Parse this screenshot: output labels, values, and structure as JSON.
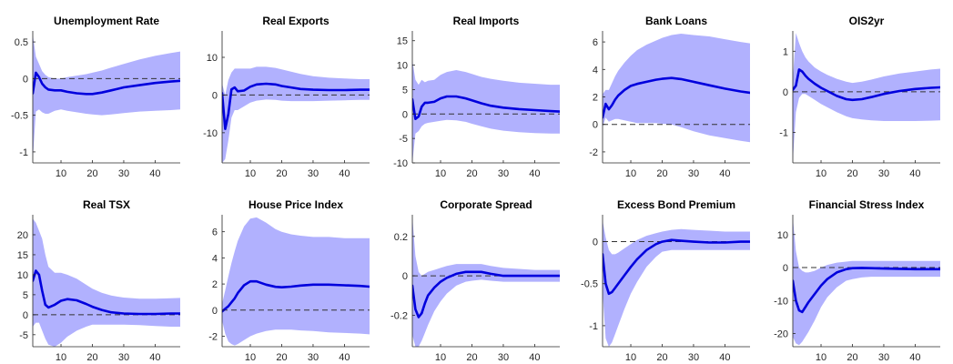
{
  "figure": {
    "colors": {
      "band": "#b1b1fe",
      "line": "#0000dd",
      "zero": "#333333"
    }
  },
  "chart_data": [
    {
      "type": "area",
      "title": "Unemployment Rate",
      "xlim": [
        1,
        48
      ],
      "ylim": [
        -1.15,
        0.65
      ],
      "xticks": [
        10,
        20,
        30,
        40
      ],
      "yticks": [
        -1,
        -0.5,
        0,
        0.5
      ],
      "ytick_labels": [
        "-1",
        "-0.5",
        "0",
        "0.5"
      ],
      "zero_line": 0,
      "x": [
        1,
        2,
        3,
        4,
        5,
        6,
        8,
        10,
        12,
        15,
        18,
        20,
        23,
        26,
        30,
        35,
        40,
        45,
        48
      ],
      "median": [
        -0.2,
        0.08,
        0.02,
        -0.07,
        -0.12,
        -0.15,
        -0.16,
        -0.16,
        -0.18,
        -0.2,
        -0.21,
        -0.21,
        -0.19,
        -0.16,
        -0.12,
        -0.09,
        -0.06,
        -0.04,
        -0.03
      ],
      "upper": [
        0.6,
        0.3,
        0.2,
        0.1,
        0.05,
        0.02,
        0.0,
        0.0,
        0.02,
        0.04,
        0.06,
        0.08,
        0.11,
        0.15,
        0.2,
        0.26,
        0.31,
        0.35,
        0.37
      ],
      "lower": [
        -1.1,
        -0.45,
        -0.42,
        -0.46,
        -0.48,
        -0.48,
        -0.44,
        -0.42,
        -0.44,
        -0.46,
        -0.48,
        -0.49,
        -0.5,
        -0.49,
        -0.47,
        -0.45,
        -0.44,
        -0.43,
        -0.42
      ]
    },
    {
      "type": "area",
      "title": "Real Exports",
      "xlim": [
        1,
        48
      ],
      "ylim": [
        -18,
        17
      ],
      "xticks": [
        10,
        20,
        30,
        40
      ],
      "yticks": [
        -10,
        0,
        10
      ],
      "ytick_labels": [
        "-10",
        "0",
        "10"
      ],
      "zero_line": 0,
      "x": [
        1,
        2,
        3,
        4,
        5,
        6,
        8,
        10,
        12,
        15,
        18,
        20,
        23,
        26,
        30,
        35,
        40,
        45,
        48
      ],
      "median": [
        0.5,
        -9,
        -5,
        1.5,
        2,
        1,
        1.2,
        2.2,
        2.8,
        3,
        2.8,
        2.4,
        2,
        1.6,
        1.4,
        1.3,
        1.3,
        1.4,
        1.4
      ],
      "upper": [
        3,
        0,
        4,
        6,
        7,
        7,
        7,
        7,
        7.5,
        7.5,
        7.2,
        6.8,
        6.2,
        5.6,
        5,
        4.6,
        4.4,
        4.2,
        4.2
      ],
      "lower": [
        -18,
        -17,
        -12,
        -6,
        -4,
        -4,
        -3,
        -2,
        -1.5,
        -1.2,
        -1.3,
        -1.5,
        -1.6,
        -1.6,
        -1.6,
        -1.5,
        -1.4,
        -1.3,
        -1.3
      ]
    },
    {
      "type": "area",
      "title": "Real Imports",
      "xlim": [
        1,
        48
      ],
      "ylim": [
        -10,
        17
      ],
      "xticks": [
        10,
        20,
        30,
        40
      ],
      "yticks": [
        -10,
        -5,
        0,
        5,
        10,
        15
      ],
      "ytick_labels": [
        "-10",
        "-5",
        "0",
        "5",
        "10",
        "15"
      ],
      "zero_line": 0,
      "x": [
        1,
        2,
        3,
        4,
        5,
        6,
        8,
        10,
        12,
        15,
        18,
        20,
        23,
        26,
        30,
        35,
        40,
        45,
        48
      ],
      "median": [
        3,
        -1,
        -0.5,
        1.5,
        2.3,
        2.3,
        2.5,
        3.2,
        3.6,
        3.6,
        3.2,
        2.8,
        2.2,
        1.7,
        1.3,
        1,
        0.8,
        0.6,
        0.5
      ],
      "upper": [
        11,
        7,
        6,
        7,
        6.5,
        6.8,
        7,
        8,
        8.6,
        9,
        8.6,
        8.2,
        7.6,
        7.2,
        6.8,
        6.4,
        6.2,
        6,
        6
      ],
      "lower": [
        -10,
        -4,
        -3.5,
        -2.5,
        -2,
        -1.8,
        -1.6,
        -1.4,
        -1.2,
        -1.3,
        -1.6,
        -2,
        -2.5,
        -3,
        -3.4,
        -3.7,
        -3.9,
        -4,
        -4
      ]
    },
    {
      "type": "area",
      "title": "Bank Loans",
      "xlim": [
        1,
        48
      ],
      "ylim": [
        -2.8,
        6.8
      ],
      "xticks": [
        10,
        20,
        30,
        40
      ],
      "yticks": [
        -2,
        0,
        2,
        4,
        6
      ],
      "ytick_labels": [
        "-2",
        "0",
        "2",
        "4",
        "6"
      ],
      "zero_line": 0,
      "x": [
        1,
        2,
        3,
        4,
        5,
        6,
        8,
        10,
        12,
        15,
        18,
        20,
        23,
        26,
        30,
        35,
        40,
        45,
        48
      ],
      "median": [
        0.5,
        1.5,
        1.1,
        1.4,
        1.8,
        2.1,
        2.5,
        2.8,
        2.95,
        3.1,
        3.25,
        3.32,
        3.38,
        3.3,
        3.1,
        2.85,
        2.6,
        2.4,
        2.3
      ],
      "upper": [
        2.2,
        2.5,
        2.5,
        3,
        3.5,
        3.9,
        4.5,
        5,
        5.4,
        5.8,
        6.1,
        6.3,
        6.5,
        6.6,
        6.5,
        6.4,
        6.2,
        6.0,
        5.9
      ],
      "lower": [
        -0.2,
        0.5,
        0.2,
        0.3,
        0.4,
        0.4,
        0.3,
        0.2,
        0.1,
        0.1,
        0.1,
        0.05,
        0,
        -0.2,
        -0.5,
        -0.8,
        -1.0,
        -1.2,
        -1.3
      ]
    },
    {
      "type": "area",
      "title": "OIS2yr",
      "xlim": [
        1,
        48
      ],
      "ylim": [
        -1.75,
        1.5
      ],
      "xticks": [
        10,
        20,
        30,
        40
      ],
      "yticks": [
        -1,
        0,
        1
      ],
      "ytick_labels": [
        "-1",
        "0",
        "1"
      ],
      "zero_line": 0,
      "x": [
        1,
        2,
        3,
        4,
        5,
        6,
        8,
        10,
        12,
        15,
        18,
        20,
        23,
        26,
        30,
        35,
        40,
        45,
        48
      ],
      "median": [
        0.05,
        0.15,
        0.55,
        0.5,
        0.4,
        0.32,
        0.2,
        0.1,
        0.02,
        -0.1,
        -0.18,
        -0.2,
        -0.18,
        -0.13,
        -0.05,
        0.02,
        0.07,
        0.1,
        0.11
      ],
      "upper": [
        0.3,
        1.45,
        1.2,
        1.0,
        0.85,
        0.75,
        0.6,
        0.5,
        0.42,
        0.32,
        0.25,
        0.22,
        0.25,
        0.3,
        0.38,
        0.45,
        0.5,
        0.55,
        0.57
      ],
      "lower": [
        -1.7,
        -0.5,
        -0.15,
        -0.05,
        -0.05,
        -0.1,
        -0.2,
        -0.3,
        -0.38,
        -0.5,
        -0.6,
        -0.65,
        -0.68,
        -0.7,
        -0.72,
        -0.72,
        -0.72,
        -0.71,
        -0.7
      ]
    },
    {
      "type": "area",
      "title": "Real TSX",
      "xlim": [
        1,
        48
      ],
      "ylim": [
        -8,
        25
      ],
      "xticks": [
        10,
        20,
        30,
        40
      ],
      "yticks": [
        -5,
        0,
        5,
        10,
        15,
        20
      ],
      "ytick_labels": [
        "-5",
        "0",
        "5",
        "10",
        "15",
        "20"
      ],
      "zero_line": 0,
      "x": [
        1,
        2,
        3,
        4,
        5,
        6,
        8,
        10,
        12,
        15,
        18,
        20,
        23,
        26,
        30,
        35,
        40,
        45,
        48
      ],
      "median": [
        8.5,
        11,
        10,
        6,
        2.5,
        1.8,
        2.5,
        3.5,
        3.9,
        3.6,
        2.7,
        2,
        1.2,
        0.6,
        0.3,
        0.2,
        0.2,
        0.3,
        0.3
      ],
      "upper": [
        24,
        23,
        21,
        19,
        15,
        12,
        10.5,
        10.5,
        10,
        9,
        7.5,
        6.5,
        5.5,
        4.8,
        4.3,
        4,
        4,
        4.1,
        4.2
      ],
      "lower": [
        -3,
        -2,
        -2,
        -4,
        -6,
        -7.5,
        -8,
        -7,
        -5.5,
        -4,
        -3,
        -2.5,
        -2.5,
        -2.5,
        -2.5,
        -2.6,
        -2.8,
        -3,
        -3
      ]
    },
    {
      "type": "area",
      "title": "House Price Index",
      "xlim": [
        1,
        48
      ],
      "ylim": [
        -2.8,
        7.3
      ],
      "xticks": [
        10,
        20,
        30,
        40
      ],
      "yticks": [
        -2,
        0,
        2,
        4,
        6
      ],
      "ytick_labels": [
        "-2",
        "0",
        "2",
        "4",
        "6"
      ],
      "zero_line": 0,
      "x": [
        1,
        2,
        3,
        4,
        5,
        6,
        8,
        10,
        12,
        15,
        18,
        20,
        23,
        26,
        30,
        35,
        40,
        45,
        48
      ],
      "median": [
        -0.1,
        0.1,
        0.3,
        0.6,
        0.9,
        1.3,
        1.9,
        2.2,
        2.2,
        1.95,
        1.78,
        1.75,
        1.8,
        1.88,
        1.95,
        1.95,
        1.9,
        1.85,
        1.8
      ],
      "upper": [
        0.5,
        1.5,
        2.6,
        3.6,
        4.5,
        5.3,
        6.4,
        7.0,
        7.1,
        6.7,
        6.2,
        6.0,
        5.8,
        5.7,
        5.6,
        5.6,
        5.5,
        5.5,
        5.5
      ],
      "lower": [
        -0.8,
        -1.8,
        -2.4,
        -2.6,
        -2.7,
        -2.6,
        -2.3,
        -2.0,
        -1.8,
        -1.6,
        -1.5,
        -1.5,
        -1.5,
        -1.55,
        -1.6,
        -1.7,
        -1.75,
        -1.8,
        -1.85
      ]
    },
    {
      "type": "area",
      "title": "Corporate Spread",
      "xlim": [
        1,
        48
      ],
      "ylim": [
        -0.36,
        0.31
      ],
      "xticks": [
        10,
        20,
        30,
        40
      ],
      "yticks": [
        -0.2,
        0,
        0.2
      ],
      "ytick_labels": [
        "-0.2",
        "0",
        "0.2"
      ],
      "zero_line": 0,
      "x": [
        1,
        2,
        3,
        4,
        5,
        6,
        8,
        10,
        12,
        15,
        18,
        20,
        23,
        26,
        30,
        35,
        40,
        45,
        48
      ],
      "median": [
        -0.05,
        -0.17,
        -0.21,
        -0.19,
        -0.14,
        -0.1,
        -0.06,
        -0.03,
        -0.01,
        0.01,
        0.02,
        0.02,
        0.02,
        0.01,
        0.0,
        0.0,
        0.0,
        0.0,
        0.0
      ],
      "upper": [
        0.3,
        0.1,
        0.02,
        0.0,
        0.01,
        0.02,
        0.03,
        0.04,
        0.05,
        0.06,
        0.06,
        0.06,
        0.06,
        0.05,
        0.04,
        0.035,
        0.03,
        0.03,
        0.03
      ],
      "lower": [
        -0.3,
        -0.36,
        -0.36,
        -0.33,
        -0.29,
        -0.25,
        -0.18,
        -0.13,
        -0.09,
        -0.05,
        -0.03,
        -0.025,
        -0.02,
        -0.025,
        -0.03,
        -0.03,
        -0.03,
        -0.03,
        -0.03
      ]
    },
    {
      "type": "area",
      "title": "Excess Bond Premium",
      "xlim": [
        1,
        48
      ],
      "ylim": [
        -1.25,
        0.32
      ],
      "xticks": [
        10,
        20,
        30,
        40
      ],
      "yticks": [
        -1,
        -0.5,
        0
      ],
      "ytick_labels": [
        "-1",
        "-0.5",
        "0"
      ],
      "zero_line": 0,
      "x": [
        1,
        2,
        3,
        4,
        5,
        6,
        8,
        10,
        12,
        15,
        18,
        20,
        23,
        26,
        30,
        35,
        40,
        45,
        48
      ],
      "median": [
        -0.15,
        -0.5,
        -0.62,
        -0.6,
        -0.55,
        -0.5,
        -0.4,
        -0.3,
        -0.21,
        -0.1,
        -0.03,
        0.0,
        0.02,
        0.01,
        0.0,
        -0.01,
        -0.01,
        0.0,
        0.0
      ],
      "upper": [
        0.25,
        0.05,
        -0.1,
        -0.15,
        -0.15,
        -0.13,
        -0.08,
        -0.03,
        0.02,
        0.07,
        0.1,
        0.12,
        0.14,
        0.15,
        0.14,
        0.13,
        0.12,
        0.12,
        0.12
      ],
      "lower": [
        -0.6,
        -1.15,
        -1.25,
        -1.2,
        -1.1,
        -1.0,
        -0.8,
        -0.62,
        -0.48,
        -0.3,
        -0.18,
        -0.12,
        -0.1,
        -0.1,
        -0.1,
        -0.1,
        -0.1,
        -0.1,
        -0.1
      ]
    },
    {
      "type": "area",
      "title": "Financial Stress Index",
      "xlim": [
        1,
        48
      ],
      "ylim": [
        -24,
        16
      ],
      "xticks": [
        10,
        20,
        30,
        40
      ],
      "yticks": [
        -20,
        -10,
        0,
        10
      ],
      "ytick_labels": [
        "-20",
        "-10",
        "0",
        "10"
      ],
      "zero_line": 0,
      "x": [
        1,
        2,
        3,
        4,
        5,
        6,
        8,
        10,
        12,
        15,
        18,
        20,
        23,
        26,
        30,
        35,
        40,
        45,
        48
      ],
      "median": [
        -4,
        -10,
        -13,
        -13.5,
        -12,
        -10.5,
        -8,
        -5.5,
        -3.5,
        -1.5,
        -0.5,
        -0.2,
        -0.1,
        -0.2,
        -0.3,
        -0.4,
        -0.5,
        -0.5,
        -0.5
      ],
      "upper": [
        15,
        5,
        0,
        -1,
        -1.5,
        -1.5,
        -1,
        0,
        0.8,
        1.5,
        1.8,
        2,
        2,
        2,
        2,
        2,
        2,
        2,
        2
      ],
      "lower": [
        -21,
        -23,
        -23.5,
        -22.5,
        -21,
        -19.5,
        -16,
        -12,
        -9,
        -6,
        -4,
        -3.5,
        -3,
        -2.8,
        -2.8,
        -2.8,
        -2.8,
        -2.8,
        -2.8
      ]
    }
  ]
}
